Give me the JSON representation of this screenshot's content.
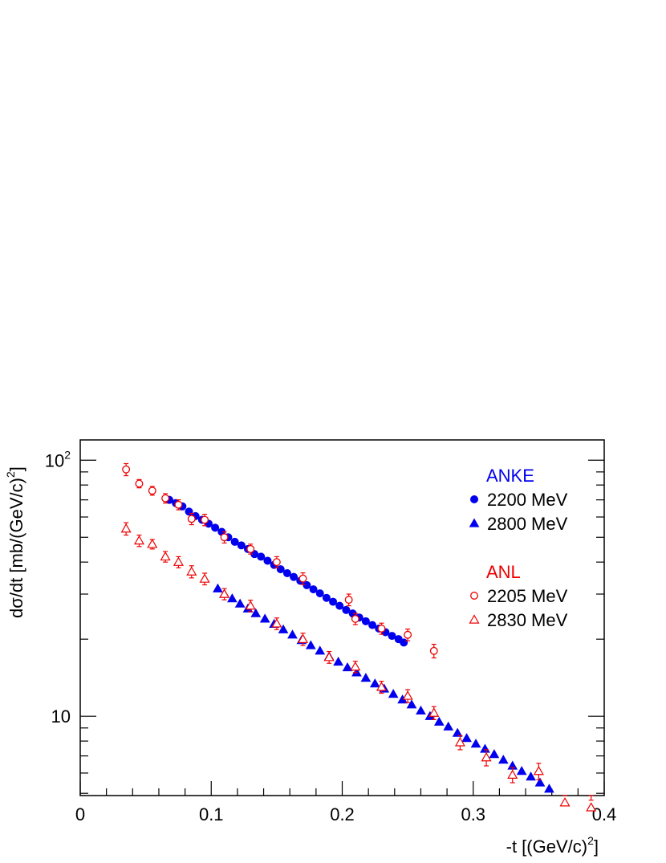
{
  "chart_data": {
    "type": "scatter",
    "xlabel": "-t [(GeV/c)",
    "xlabel_sup": "2",
    "xlabel_end": "]",
    "ylabel": "dσ/dt [mb/(GeV/c)",
    "ylabel_sup": "2",
    "ylabel_end": "]",
    "xlim": [
      0,
      0.4
    ],
    "ylim": [
      4.9,
      120
    ],
    "yscale": "log",
    "grid": false,
    "legend_position": "top-right",
    "x_ticks": [
      {
        "value": 0,
        "label": "0"
      },
      {
        "value": 0.1,
        "label": "0.1"
      },
      {
        "value": 0.2,
        "label": "0.2"
      },
      {
        "value": 0.3,
        "label": "0.3"
      },
      {
        "value": 0.4,
        "label": "0.4"
      }
    ],
    "y_ticks": [
      {
        "value": 10,
        "label": "10",
        "sup": ""
      },
      {
        "value": 100,
        "label": "10",
        "sup": "2"
      }
    ],
    "legend_groups": [
      {
        "title": "ANKE",
        "color": "#0000ee",
        "entries": [
          "2200 MeV",
          "2800 MeV"
        ]
      },
      {
        "title": "ANL",
        "color": "#ee0000",
        "entries": [
          "2205 MeV",
          "2830 MeV"
        ]
      }
    ],
    "series": [
      {
        "name": "2200 MeV",
        "group": "ANKE",
        "marker": "filled-circle",
        "color": "#0000ee",
        "x": [
          0.068,
          0.073,
          0.078,
          0.083,
          0.088,
          0.093,
          0.098,
          0.103,
          0.108,
          0.113,
          0.118,
          0.123,
          0.128,
          0.133,
          0.138,
          0.143,
          0.148,
          0.153,
          0.158,
          0.163,
          0.168,
          0.173,
          0.178,
          0.183,
          0.188,
          0.193,
          0.198,
          0.203,
          0.208,
          0.213,
          0.218,
          0.223,
          0.228,
          0.233,
          0.238,
          0.243,
          0.247
        ],
        "y": [
          70,
          68,
          66,
          63,
          60.5,
          58.5,
          56.5,
          54.5,
          52.5,
          50,
          48,
          46.5,
          45,
          43,
          42,
          40.5,
          39,
          37.5,
          36.2,
          35,
          33.8,
          32.5,
          31.3,
          30.2,
          29,
          28,
          27,
          26,
          25.2,
          24.3,
          23.5,
          22.7,
          22,
          21.3,
          20.6,
          20,
          19.4
        ]
      },
      {
        "name": "2800 MeV",
        "group": "ANKE",
        "marker": "filled-triangle",
        "color": "#0000ee",
        "x": [
          0.105,
          0.11,
          0.116,
          0.122,
          0.128,
          0.134,
          0.141,
          0.148,
          0.155,
          0.162,
          0.169,
          0.176,
          0.183,
          0.19,
          0.197,
          0.204,
          0.211,
          0.218,
          0.225,
          0.232,
          0.239,
          0.246,
          0.253,
          0.26,
          0.267,
          0.274,
          0.281,
          0.288,
          0.295,
          0.302,
          0.309,
          0.316,
          0.323,
          0.33,
          0.337,
          0.344,
          0.351,
          0.358
        ],
        "y": [
          31.5,
          30,
          28.8,
          27.5,
          26.3,
          25.2,
          24,
          22.9,
          21.8,
          20.8,
          19.8,
          18.9,
          18,
          17.1,
          16.3,
          15.5,
          14.8,
          14.1,
          13.4,
          12.8,
          12.2,
          11.6,
          11.1,
          10.5,
          10,
          9.5,
          9.1,
          8.6,
          8.2,
          7.8,
          7.45,
          7.1,
          6.75,
          6.4,
          6.1,
          5.8,
          5.5,
          5.2
        ]
      },
      {
        "name": "2205 MeV",
        "group": "ANL",
        "marker": "open-circle",
        "color": "#ee0000",
        "x": [
          0.035,
          0.045,
          0.055,
          0.065,
          0.075,
          0.085,
          0.095,
          0.11,
          0.13,
          0.15,
          0.17,
          0.205,
          0.21,
          0.23,
          0.25,
          0.27
        ],
        "y": [
          92,
          81,
          76,
          71,
          67,
          59,
          58.5,
          50,
          45,
          40,
          34.5,
          28.5,
          24,
          22,
          20.8,
          18
        ],
        "yerr": [
          5,
          3,
          3,
          3,
          3,
          3,
          3,
          2.5,
          2,
          2,
          1.8,
          1.5,
          1.2,
          1.1,
          1.1,
          1.1
        ]
      },
      {
        "name": "2830 MeV",
        "group": "ANL",
        "marker": "open-triangle",
        "color": "#ee0000",
        "x": [
          0.035,
          0.045,
          0.055,
          0.065,
          0.075,
          0.085,
          0.095,
          0.11,
          0.13,
          0.15,
          0.17,
          0.19,
          0.21,
          0.23,
          0.25,
          0.27,
          0.29,
          0.31,
          0.33,
          0.35,
          0.37,
          0.39
        ],
        "y": [
          54,
          48.5,
          47,
          42,
          40,
          36.7,
          34.4,
          30,
          27,
          23,
          20,
          17,
          15.6,
          13,
          12,
          10.3,
          7.9,
          6.9,
          5.9,
          6.1,
          4.6,
          4.4
        ],
        "yerr": [
          3,
          2.5,
          2,
          2,
          2,
          2,
          1.8,
          1.5,
          1.4,
          1.2,
          1.1,
          0.9,
          0.8,
          0.7,
          0.7,
          0.6,
          0.5,
          0.5,
          0.4,
          0.45,
          0.3,
          0.3
        ]
      }
    ]
  }
}
